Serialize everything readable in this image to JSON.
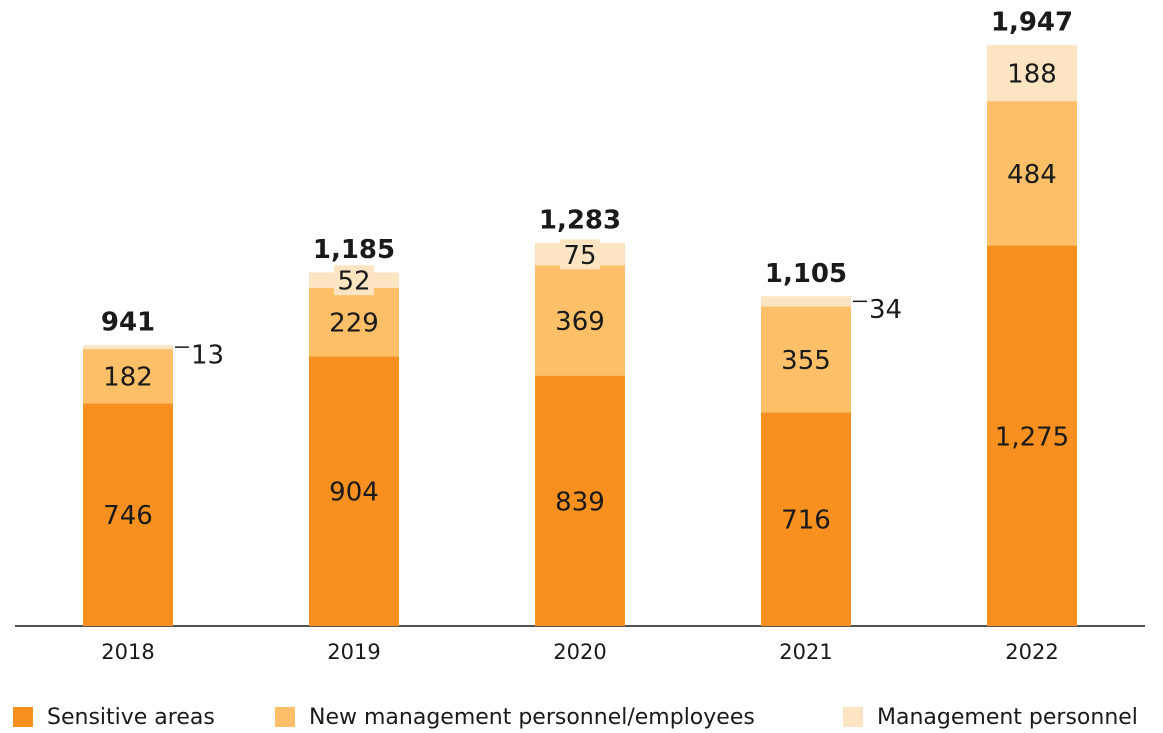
{
  "chart_data": {
    "type": "stacked_bar",
    "categories": [
      "2018",
      "2019",
      "2020",
      "2021",
      "2022"
    ],
    "series": [
      {
        "name": "Sensitive areas",
        "color": "#f7901e",
        "values": [
          746,
          904,
          839,
          716,
          1275
        ],
        "value_labels": [
          "746",
          "904",
          "839",
          "716",
          "1,275"
        ]
      },
      {
        "name": "New management personnel/employees",
        "color": "#fdbf68",
        "values": [
          182,
          229,
          369,
          355,
          484
        ]
      },
      {
        "name": "Management personnel",
        "color": "#fde5c3",
        "values": [
          13,
          52,
          75,
          34,
          188
        ]
      }
    ],
    "totals": [
      941,
      1185,
      1283,
      1105,
      1947
    ],
    "total_labels": [
      "941",
      "1,185",
      "1,283",
      "1,105",
      "1,947"
    ]
  }
}
